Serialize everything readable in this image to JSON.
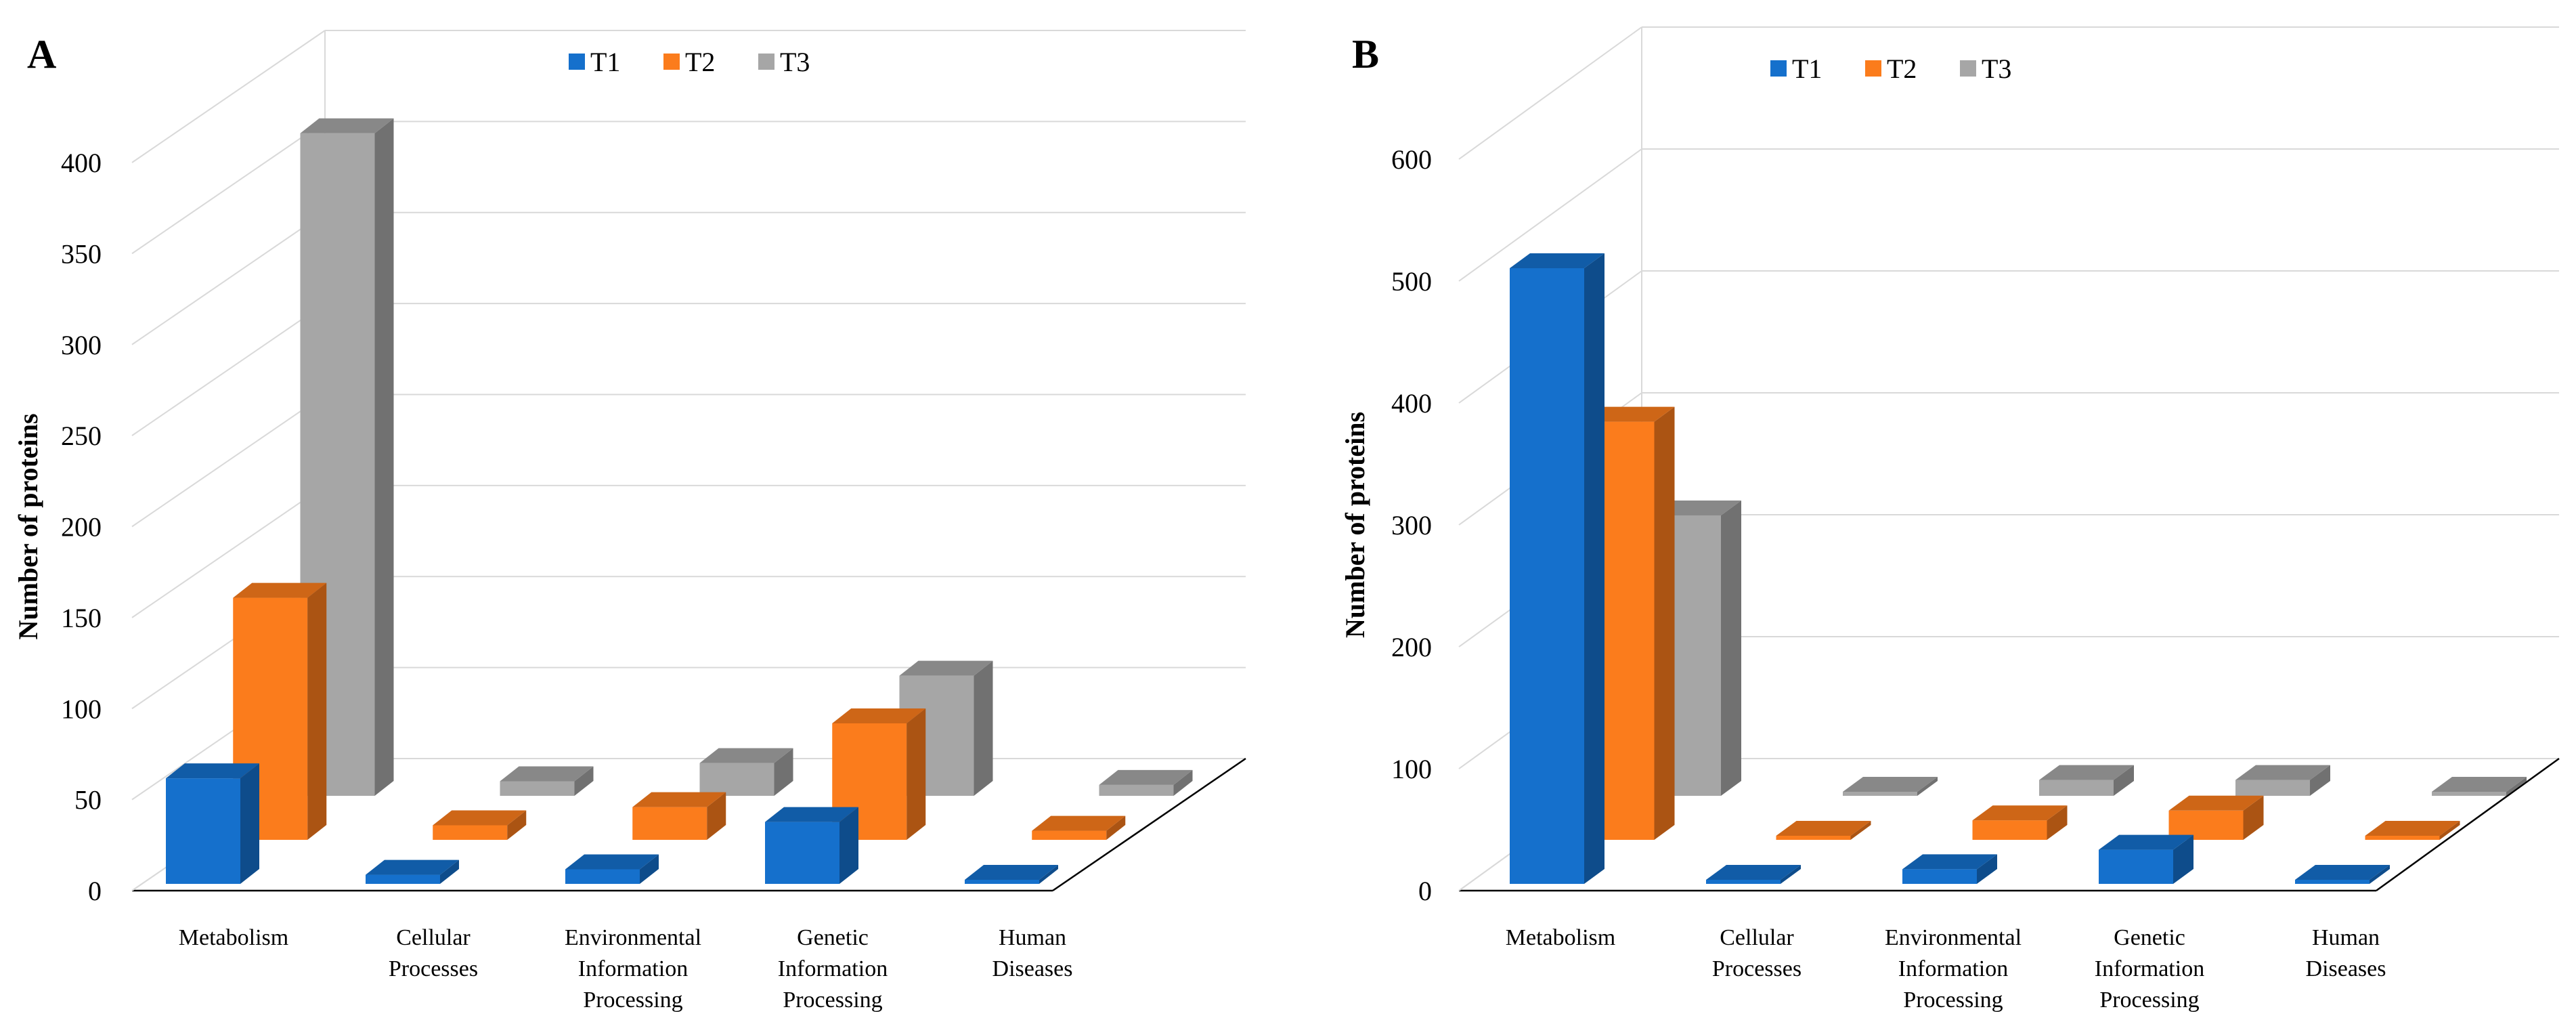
{
  "chart_data": [
    {
      "panel": "A",
      "type": "bar",
      "subtype": "3d-clustered",
      "ylabel": "Number of proteins",
      "xlabel": "",
      "ylim": [
        0,
        400
      ],
      "yticks": [
        "0",
        "50",
        "100",
        "150",
        "200",
        "250",
        "300",
        "350",
        "400"
      ],
      "grid": true,
      "legend_position": "top-center",
      "categories": [
        [
          "Metabolism"
        ],
        [
          "Cellular",
          "Processes"
        ],
        [
          "Environmental",
          "Information",
          "Processing"
        ],
        [
          "Genetic",
          "Information",
          "Processing"
        ],
        [
          "Human",
          "Diseases"
        ]
      ],
      "series": [
        {
          "name": "T1",
          "color": "#1570cc",
          "values": [
            58,
            5,
            8,
            34,
            1
          ]
        },
        {
          "name": "T2",
          "color": "#fb7c1c",
          "values": [
            133,
            8,
            18,
            64,
            5
          ]
        },
        {
          "name": "T3",
          "color": "#a6a6a6",
          "values": [
            364,
            8,
            18,
            66,
            6
          ]
        }
      ]
    },
    {
      "panel": "B",
      "type": "bar",
      "subtype": "3d-clustered",
      "ylabel": "Number of proteins",
      "xlabel": "",
      "ylim": [
        0,
        600
      ],
      "yticks": [
        "0",
        "100",
        "200",
        "300",
        "400",
        "500",
        "600"
      ],
      "grid": true,
      "legend_position": "top-center",
      "categories": [
        [
          "Metabolism"
        ],
        [
          "Cellular",
          "Processes"
        ],
        [
          "Environmental",
          "Information",
          "Processing"
        ],
        [
          "Genetic",
          "Information",
          "Processing"
        ],
        [
          "Human",
          "Diseases"
        ]
      ],
      "series": [
        {
          "name": "T1",
          "color": "#1570cc",
          "values": [
            505,
            1,
            12,
            28,
            1
          ]
        },
        {
          "name": "T2",
          "color": "#fb7c1c",
          "values": [
            343,
            2,
            16,
            24,
            2
          ]
        },
        {
          "name": "T3",
          "color": "#a6a6a6",
          "values": [
            230,
            3,
            13,
            13,
            3
          ]
        }
      ]
    }
  ]
}
